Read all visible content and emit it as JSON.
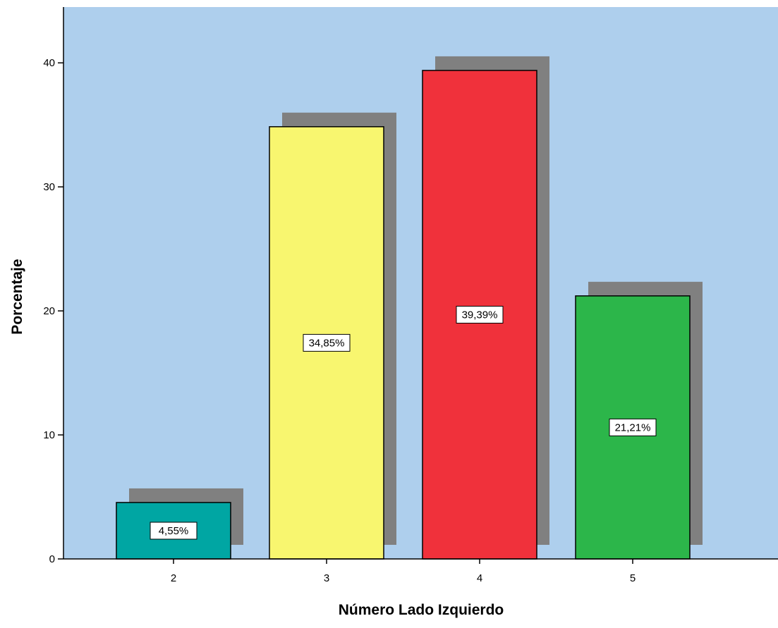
{
  "chart_data": {
    "type": "bar",
    "xlabel": "Número Lado Izquierdo",
    "ylabel": "Porcentaje",
    "categories": [
      "2",
      "3",
      "4",
      "5"
    ],
    "values": [
      4.55,
      34.85,
      39.39,
      21.21
    ],
    "data_labels": [
      "4,55%",
      "34,85%",
      "39,39%",
      "21,21%"
    ],
    "bar_colors": [
      "#00a6a3",
      "#f8f66f",
      "#f0313b",
      "#2cb64a"
    ],
    "shadow_color": "#808080",
    "plot_background": "#aecfed",
    "ylim": [
      0,
      44.5
    ],
    "yticks": [
      0,
      10,
      20,
      30,
      40
    ],
    "grid": false,
    "legend": "none"
  }
}
